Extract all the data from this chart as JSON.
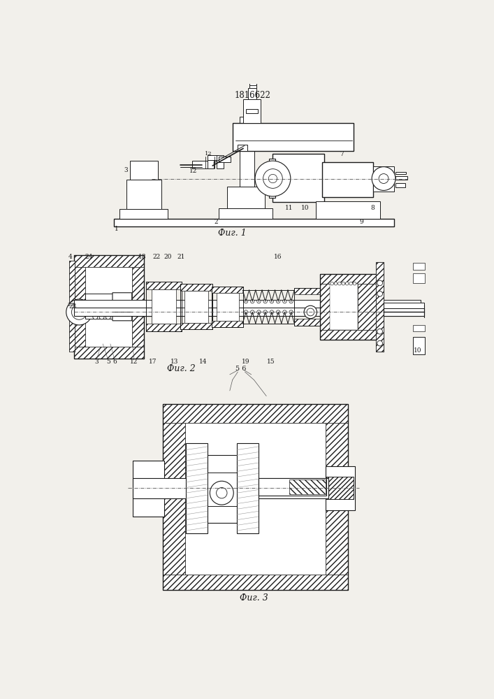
{
  "title": "1816622",
  "bg_color": "#f2f0eb",
  "line_color": "#1a1a1a",
  "fig1_caption": "Фиг. 1",
  "fig2_caption": "Фиг. 2",
  "fig3_caption": "Фиг. 3",
  "fig2_extra": "5 6",
  "white": "#ffffff",
  "hatch_fg": "#1a1a1a"
}
